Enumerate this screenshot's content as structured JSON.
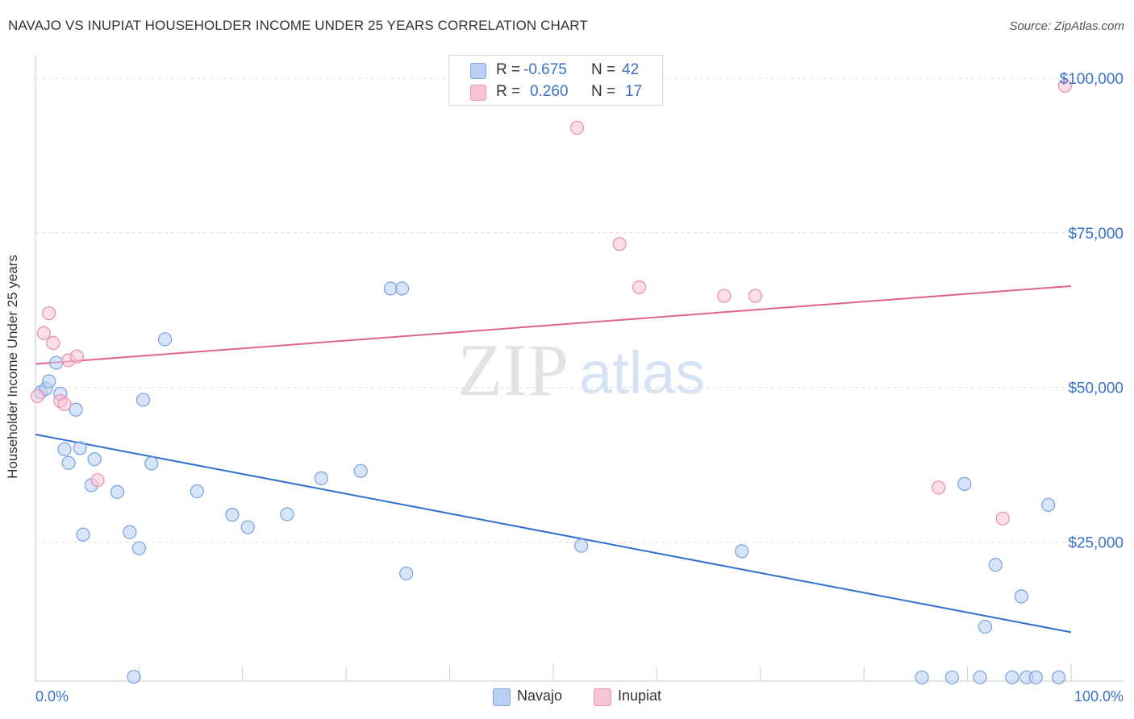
{
  "title": "NAVAJO VS INUPIAT HOUSEHOLDER INCOME UNDER 25 YEARS CORRELATION CHART",
  "source": "Source: ZipAtlas.com",
  "watermark": {
    "part1": "ZIP",
    "part2": "atlas"
  },
  "colors": {
    "navajo_fill": "#b8d0f4",
    "navajo_stroke": "#7ea6e0",
    "navajo_line": "#2f6fd0",
    "inupiat_fill": "#f8c4d4",
    "inupiat_stroke": "#eb93b0",
    "inupiat_line": "#e0648e",
    "value_text": "#3a73c8",
    "grid": "#dddddd"
  },
  "stats": [
    {
      "series": "Navajo",
      "r_label": "R =",
      "r_value": "-0.675",
      "n_label": "N =",
      "n_value": "42"
    },
    {
      "series": "Inupiat",
      "r_label": "R =",
      "r_value": "0.260",
      "n_label": "N =",
      "n_value": "17"
    }
  ],
  "legend": [
    "Navajo",
    "Inupiat"
  ],
  "chart_data": {
    "type": "scatter",
    "title": "NAVAJO VS INUPIAT HOUSEHOLDER INCOME UNDER 25 YEARS CORRELATION CHART",
    "xlabel": "",
    "ylabel": "Householder Income Under 25 years",
    "xlim": [
      0,
      100
    ],
    "ylim": [
      2500,
      102500
    ],
    "x_tick_labels": [
      {
        "value": 0,
        "label": "0.0%"
      },
      {
        "value": 100,
        "label": "100.0%"
      }
    ],
    "y_tick_labels": [
      {
        "value": 25000,
        "label": "$25,000"
      },
      {
        "value": 50000,
        "label": "$50,000"
      },
      {
        "value": 75000,
        "label": "$75,000"
      },
      {
        "value": 100000,
        "label": "$100,000"
      }
    ],
    "x_minor_ticks": [
      0,
      10,
      20,
      30,
      40,
      50,
      60,
      70,
      80,
      90,
      100
    ],
    "grid": true,
    "legend_position": "bottom-center",
    "series": [
      {
        "name": "Navajo",
        "points": [
          [
            0.5,
            49200
          ],
          [
            1.0,
            49800
          ],
          [
            1.3,
            51000
          ],
          [
            2.0,
            54000
          ],
          [
            2.4,
            49000
          ],
          [
            2.8,
            40000
          ],
          [
            3.2,
            37800
          ],
          [
            3.9,
            46400
          ],
          [
            4.3,
            40200
          ],
          [
            4.6,
            26200
          ],
          [
            5.4,
            34200
          ],
          [
            5.7,
            38400
          ],
          [
            7.9,
            33100
          ],
          [
            9.1,
            26600
          ],
          [
            9.5,
            3200
          ],
          [
            10.0,
            24000
          ],
          [
            10.4,
            48000
          ],
          [
            11.2,
            37700
          ],
          [
            12.5,
            57800
          ],
          [
            15.6,
            33200
          ],
          [
            19.0,
            29400
          ],
          [
            20.5,
            27400
          ],
          [
            24.3,
            29500
          ],
          [
            27.6,
            35300
          ],
          [
            31.4,
            36500
          ],
          [
            34.3,
            66000
          ],
          [
            35.4,
            66000
          ],
          [
            35.8,
            19900
          ],
          [
            52.7,
            24400
          ],
          [
            68.2,
            23500
          ],
          [
            85.6,
            3100
          ],
          [
            88.5,
            3100
          ],
          [
            89.7,
            34400
          ],
          [
            91.2,
            3100
          ],
          [
            91.7,
            11300
          ],
          [
            92.7,
            21300
          ],
          [
            94.3,
            3100
          ],
          [
            95.2,
            16200
          ],
          [
            95.7,
            3100
          ],
          [
            96.6,
            3100
          ],
          [
            97.8,
            31000
          ],
          [
            98.8,
            3100
          ]
        ],
        "trend": {
          "x": [
            0,
            100
          ],
          "y": [
            42400,
            10400
          ]
        }
      },
      {
        "name": "Inupiat",
        "points": [
          [
            0.2,
            48600
          ],
          [
            0.8,
            58800
          ],
          [
            1.3,
            62000
          ],
          [
            1.7,
            57200
          ],
          [
            2.4,
            47800
          ],
          [
            2.8,
            47300
          ],
          [
            3.2,
            54400
          ],
          [
            4.0,
            55000
          ],
          [
            6.0,
            35000
          ],
          [
            52.3,
            92000
          ],
          [
            56.4,
            73200
          ],
          [
            58.3,
            66200
          ],
          [
            66.5,
            64800
          ],
          [
            69.5,
            64800
          ],
          [
            87.2,
            33800
          ],
          [
            93.4,
            28800
          ],
          [
            99.4,
            98800
          ]
        ],
        "trend": {
          "x": [
            0,
            100
          ],
          "y": [
            53800,
            66400
          ]
        }
      }
    ]
  }
}
